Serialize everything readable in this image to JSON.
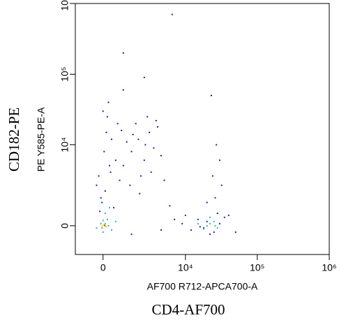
{
  "chart_data": {
    "type": "scatter",
    "x_label": "AF700 R712-APCA700-A",
    "y_label": "PE Y585-PE-A",
    "x_outer_label": "CD4-AF700",
    "y_outer_label": "CD182-PE",
    "x_scale": "biexponential",
    "y_scale": "biexponential",
    "xlim": [
      -1450,
      1000000
    ],
    "ylim": [
      -1550,
      1000000
    ],
    "xticks": [
      0,
      {
        "value": 10000,
        "label": "10⁴"
      },
      {
        "value": 100000,
        "label": "10⁵"
      },
      {
        "value": 1000000,
        "label": "10⁶"
      }
    ],
    "yticks": [
      0,
      {
        "value": 10000,
        "label": "10⁴"
      },
      {
        "value": 100000,
        "label": "10⁵"
      },
      {
        "value": 1000000,
        "label": "10⁶"
      }
    ],
    "series": [
      {
        "color": "#1a1acc",
        "x": [
          100,
          -200,
          300,
          50,
          400,
          -100,
          200,
          600,
          -300,
          150,
          500,
          -50,
          350,
          700,
          0,
          250,
          -150,
          800,
          1000,
          1500,
          2000,
          2500,
          3000,
          1800,
          2200,
          3500,
          4000,
          1200,
          2800,
          4500,
          3200,
          1600,
          2600,
          3800,
          2100,
          5000,
          900,
          1400,
          9000,
          12000,
          15000,
          18000,
          20000,
          25000,
          30000,
          35000,
          10000,
          22000,
          28000,
          16000,
          26000,
          24000,
          30000,
          27000,
          32000,
          20000,
          1000,
          2500,
          6000,
          7000,
          4500,
          1500,
          40000,
          50000,
          23000,
          6500,
          1000
        ],
        "y": [
          2000,
          3500,
          5000,
          8000,
          12000,
          1500,
          25000,
          6000,
          2500,
          15000,
          900,
          1200,
          4000,
          20000,
          30000,
          40000,
          700,
          3000,
          5000,
          8000,
          12000,
          6000,
          15000,
          20000,
          3500,
          9000,
          18000,
          11000,
          25000,
          7000,
          4000,
          14000,
          10000,
          22000,
          1800,
          3000,
          16000,
          2500,
          100,
          -200,
          300,
          -100,
          200,
          -300,
          100,
          400,
          500,
          -400,
          600,
          -50,
          1500,
          3500,
          6000,
          10000,
          2500,
          1200,
          60000,
          90000,
          1000,
          300,
          -200,
          -400,
          500,
          -300,
          50000,
          700000,
          200000
        ]
      },
      {
        "color": "#18b4e6",
        "x": [
          200,
          -100,
          400,
          100,
          -300,
          600,
          0,
          300,
          20000,
          25000,
          18000,
          22000,
          28000,
          15000
        ],
        "y": [
          300,
          100,
          -200,
          600,
          -100,
          200,
          -300,
          900,
          0,
          200,
          -150,
          400,
          -100,
          100
        ]
      },
      {
        "color": "#2ecc40",
        "x": [
          100,
          -50,
          250,
          0,
          22000,
          26000
        ],
        "y": [
          100,
          -100,
          0,
          250,
          100,
          0
        ]
      },
      {
        "color": "#f0d000",
        "x": [
          50,
          150,
          -20
        ],
        "y": [
          50,
          -50,
          0
        ]
      },
      {
        "color": "#e02020",
        "x": [
          80
        ],
        "y": [
          10
        ]
      }
    ]
  }
}
